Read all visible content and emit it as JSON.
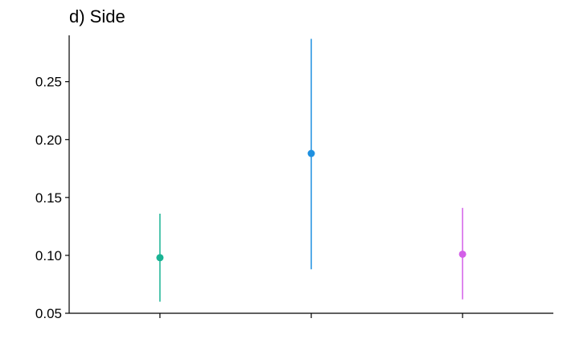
{
  "chart_data": {
    "type": "scatter",
    "title": "d) Side",
    "xlabel": "",
    "ylabel": "",
    "ylim": [
      0.05,
      0.29
    ],
    "yticks": [
      0.05,
      0.1,
      0.15,
      0.2,
      0.25
    ],
    "ytick_labels": [
      "0.05",
      "0.10",
      "0.15",
      "0.20",
      "0.25"
    ],
    "grid": false,
    "legend": "none",
    "categories": [
      "",
      "",
      ""
    ],
    "series": [
      {
        "x": 1,
        "y": 0.098,
        "ymin": 0.06,
        "ymax": 0.136,
        "color": "#1ab394"
      },
      {
        "x": 2,
        "y": 0.188,
        "ymin": 0.088,
        "ymax": 0.287,
        "color": "#1e90e0"
      },
      {
        "x": 3,
        "y": 0.101,
        "ymin": 0.062,
        "ymax": 0.141,
        "color": "#d35fe8"
      }
    ]
  }
}
